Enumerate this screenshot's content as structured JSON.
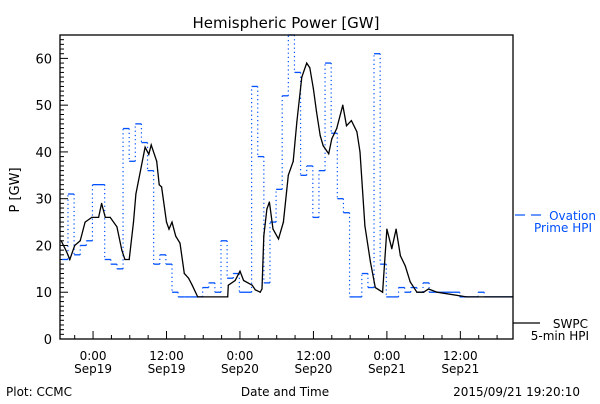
{
  "chart_data": {
    "type": "line",
    "title": "Hemispheric Power [GW]",
    "xlabel": "Date and Time",
    "ylabel": "P [GW]",
    "x_units": "hours since 2015-09-19 00:00 UT",
    "xlim": [
      -5.4,
      68.6
    ],
    "ylim": [
      0,
      65
    ],
    "yticks": [
      0,
      10,
      20,
      30,
      40,
      50,
      60
    ],
    "xticks": [
      {
        "x": 0,
        "line1": "0:00",
        "line2": "Sep19"
      },
      {
        "x": 12,
        "line1": "12:00",
        "line2": "Sep19"
      },
      {
        "x": 24,
        "line1": "0:00",
        "line2": "Sep20"
      },
      {
        "x": 36,
        "line1": "12:00",
        "line2": "Sep20"
      },
      {
        "x": 48,
        "line1": "0:00",
        "line2": "Sep21"
      },
      {
        "x": 60,
        "line1": "12:00",
        "line2": "Sep21"
      }
    ],
    "grid": false,
    "legend_placement": "right-outside",
    "series": [
      {
        "name": "Ovation Prime HPI",
        "legend_line1": "Ovation",
        "legend_line2": "Prime HPI",
        "color": "#0050ff",
        "style": "step",
        "x": [
          -5,
          -4,
          -3,
          -2,
          -1,
          0,
          1,
          2,
          3,
          4,
          5,
          6,
          7,
          8,
          9,
          10,
          11,
          12,
          13,
          14,
          15,
          16,
          17,
          18,
          19,
          20,
          21,
          22,
          23,
          24,
          25,
          26,
          27,
          28,
          29,
          30,
          31,
          32,
          33,
          34,
          35,
          36,
          37,
          38,
          39,
          40,
          41,
          42,
          43,
          44,
          45,
          46,
          47,
          48,
          49,
          50,
          51,
          52,
          53,
          54,
          55,
          56,
          57,
          58,
          59,
          60,
          61,
          62,
          63,
          64,
          65,
          66,
          67,
          68
        ],
        "values": [
          17,
          31,
          18,
          20,
          21,
          33,
          33,
          17,
          16,
          15,
          45,
          38,
          46,
          42,
          36,
          16,
          18,
          16,
          10,
          9,
          9,
          9,
          9,
          11,
          12,
          10,
          21,
          13,
          14,
          10,
          10,
          54,
          39,
          12,
          25,
          32,
          52,
          66,
          57,
          35,
          37,
          26,
          36,
          59,
          44,
          30,
          27,
          9,
          9,
          14,
          11,
          61,
          16,
          9,
          9,
          11,
          10,
          11,
          10,
          12,
          10,
          10,
          10,
          10,
          10,
          9,
          9,
          9,
          10,
          9,
          9,
          9,
          9,
          9
        ]
      },
      {
        "name": "SWPC 5-min HPI",
        "legend_line1": "SWPC",
        "legend_line2": "5-min HPI",
        "color": "#000000",
        "style": "line",
        "x": [
          -5.2,
          -4.3,
          -3.8,
          -3.0,
          -2.1,
          -1.3,
          -0.2,
          0.9,
          1.4,
          2.0,
          2.8,
          3.9,
          4.7,
          5.2,
          5.9,
          6.6,
          7.0,
          7.9,
          8.5,
          9.1,
          9.5,
          10.4,
          10.8,
          11.2,
          12.0,
          12.4,
          12.9,
          13.5,
          14.2,
          14.9,
          15.6,
          16.2,
          17.1,
          22.0,
          22.1,
          23.2,
          24.0,
          24.6,
          26.0,
          26.5,
          27.3,
          27.6,
          27.9,
          28.4,
          28.8,
          29.4,
          30.3,
          31.1,
          31.9,
          32.7,
          33.3,
          34.1,
          34.9,
          35.4,
          36.0,
          36.5,
          37.1,
          37.6,
          38.5,
          39.0,
          39.8,
          40.8,
          41.4,
          42.2,
          43.1,
          43.6,
          44.4,
          45.3,
          46.1,
          47.3,
          48.0,
          48.8,
          49.5,
          50.2,
          51.0,
          51.8,
          52.9,
          54.0,
          54.8,
          56.2,
          61.0,
          68.6
        ],
        "values": [
          21,
          18.6,
          17,
          20,
          21,
          25,
          26,
          26,
          29,
          26,
          26,
          24,
          19,
          17,
          17,
          25,
          31,
          37,
          41,
          39.5,
          41.5,
          38,
          33,
          32.5,
          25,
          23.5,
          25,
          22,
          20.5,
          14,
          13,
          11.5,
          9,
          9,
          11.5,
          12.5,
          14.5,
          12.5,
          11.5,
          10.5,
          10,
          10.7,
          22,
          27.8,
          29.3,
          23.5,
          21.4,
          25,
          35,
          38,
          46.5,
          56,
          59,
          58,
          53.5,
          48.6,
          43.5,
          41.3,
          39.6,
          42.8,
          45,
          50,
          45.6,
          46.7,
          44.3,
          40,
          24.2,
          16.5,
          11,
          10,
          23.5,
          19.3,
          23.5,
          17.8,
          15.6,
          12.2,
          10,
          10,
          10.7,
          10,
          9,
          9
        ]
      }
    ]
  },
  "footer": {
    "credit": "Plot: CCMC",
    "timestamp": "2015/09/21 19:20:10"
  }
}
